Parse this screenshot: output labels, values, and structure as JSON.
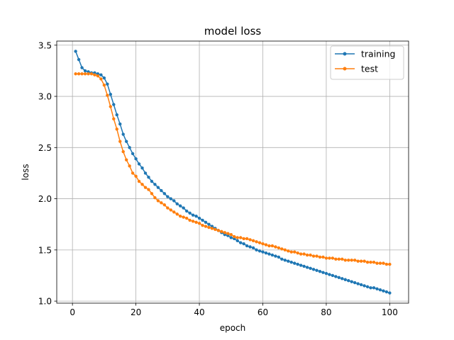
{
  "chart_data": {
    "type": "line",
    "title": "model loss",
    "xlabel": "epoch",
    "ylabel": "loss",
    "xlim": [
      -4.95,
      105.95
    ],
    "ylim": [
      0.98,
      3.54
    ],
    "xticks": [
      0,
      20,
      40,
      60,
      80,
      100
    ],
    "yticks": [
      1.0,
      1.5,
      2.0,
      2.5,
      3.0,
      3.5
    ],
    "xtick_labels": [
      "0",
      "20",
      "40",
      "60",
      "80",
      "100"
    ],
    "ytick_labels": [
      "1.0",
      "1.5",
      "2.0",
      "2.5",
      "3.0",
      "3.5"
    ],
    "grid": true,
    "legend_position": "top-right",
    "x": [
      1,
      2,
      3,
      4,
      5,
      6,
      7,
      8,
      9,
      10,
      11,
      12,
      13,
      14,
      15,
      16,
      17,
      18,
      19,
      20,
      21,
      22,
      23,
      24,
      25,
      26,
      27,
      28,
      29,
      30,
      31,
      32,
      33,
      34,
      35,
      36,
      37,
      38,
      39,
      40,
      41,
      42,
      43,
      44,
      45,
      46,
      47,
      48,
      49,
      50,
      51,
      52,
      53,
      54,
      55,
      56,
      57,
      58,
      59,
      60,
      61,
      62,
      63,
      64,
      65,
      66,
      67,
      68,
      69,
      70,
      71,
      72,
      73,
      74,
      75,
      76,
      77,
      78,
      79,
      80,
      81,
      82,
      83,
      84,
      85,
      86,
      87,
      88,
      89,
      90,
      91,
      92,
      93,
      94,
      95,
      96,
      97,
      98,
      99,
      100
    ],
    "series": [
      {
        "name": "training",
        "color": "#1f77b4",
        "values": [
          3.44,
          3.36,
          3.28,
          3.25,
          3.24,
          3.23,
          3.23,
          3.22,
          3.21,
          3.18,
          3.12,
          3.02,
          2.92,
          2.82,
          2.73,
          2.63,
          2.56,
          2.5,
          2.44,
          2.39,
          2.34,
          2.3,
          2.25,
          2.21,
          2.17,
          2.14,
          2.11,
          2.08,
          2.05,
          2.02,
          2.0,
          1.98,
          1.95,
          1.93,
          1.91,
          1.88,
          1.86,
          1.84,
          1.83,
          1.81,
          1.79,
          1.77,
          1.75,
          1.73,
          1.71,
          1.69,
          1.67,
          1.65,
          1.64,
          1.62,
          1.61,
          1.59,
          1.57,
          1.56,
          1.54,
          1.53,
          1.52,
          1.5,
          1.49,
          1.48,
          1.47,
          1.46,
          1.45,
          1.44,
          1.43,
          1.41,
          1.4,
          1.39,
          1.38,
          1.37,
          1.36,
          1.35,
          1.34,
          1.33,
          1.32,
          1.31,
          1.3,
          1.29,
          1.28,
          1.27,
          1.26,
          1.25,
          1.24,
          1.23,
          1.22,
          1.21,
          1.2,
          1.19,
          1.18,
          1.17,
          1.16,
          1.15,
          1.14,
          1.13,
          1.13,
          1.12,
          1.11,
          1.1,
          1.09,
          1.08
        ]
      },
      {
        "name": "test",
        "color": "#ff7f0e",
        "values": [
          3.22,
          3.22,
          3.22,
          3.22,
          3.22,
          3.22,
          3.21,
          3.2,
          3.17,
          3.11,
          3.01,
          2.9,
          2.78,
          2.68,
          2.56,
          2.46,
          2.38,
          2.32,
          2.25,
          2.22,
          2.17,
          2.14,
          2.11,
          2.09,
          2.05,
          2.01,
          1.98,
          1.96,
          1.94,
          1.91,
          1.89,
          1.87,
          1.85,
          1.83,
          1.82,
          1.81,
          1.79,
          1.78,
          1.77,
          1.76,
          1.74,
          1.73,
          1.72,
          1.71,
          1.7,
          1.69,
          1.68,
          1.67,
          1.66,
          1.65,
          1.63,
          1.62,
          1.62,
          1.61,
          1.61,
          1.6,
          1.59,
          1.58,
          1.57,
          1.56,
          1.55,
          1.54,
          1.54,
          1.53,
          1.52,
          1.51,
          1.5,
          1.49,
          1.48,
          1.48,
          1.47,
          1.46,
          1.46,
          1.45,
          1.45,
          1.44,
          1.44,
          1.43,
          1.43,
          1.42,
          1.42,
          1.42,
          1.41,
          1.41,
          1.41,
          1.4,
          1.4,
          1.4,
          1.4,
          1.39,
          1.39,
          1.39,
          1.38,
          1.38,
          1.38,
          1.37,
          1.37,
          1.37,
          1.36,
          1.36
        ]
      }
    ]
  }
}
